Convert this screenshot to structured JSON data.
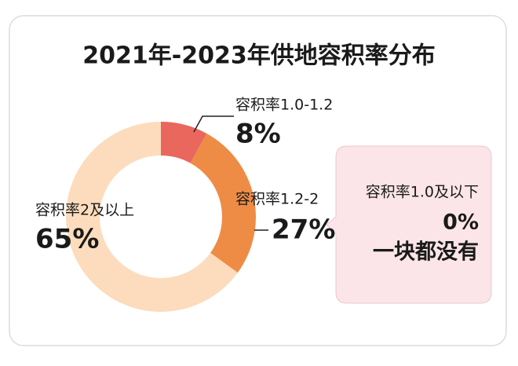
{
  "chart_data": {
    "type": "pie",
    "title": "2021年-2023年供地容积率分布",
    "categories": [
      "容积率1.0-1.2",
      "容积率1.2-2",
      "容积率2及以上"
    ],
    "values": [
      8,
      27,
      65
    ],
    "value_labels": [
      "8%",
      "27%",
      "65%"
    ],
    "colors": [
      "#e9675c",
      "#ee8c45",
      "#fcdcbd"
    ],
    "annotation": {
      "category": "容积率1.0及以下",
      "value": 0,
      "value_label": "0%",
      "note": "一块都没有"
    }
  }
}
